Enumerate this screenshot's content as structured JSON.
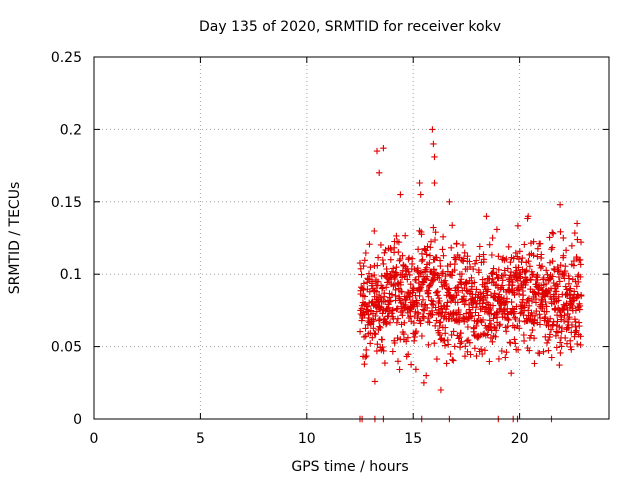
{
  "chart_data": {
    "type": "scatter",
    "title": "Day 135 of 2020, SRMTID for receiver kokv",
    "xlabel": "GPS time / hours",
    "ylabel": "SRMTID / TECUs",
    "xlim": [
      0,
      24.2
    ],
    "ylim": [
      0,
      0.25
    ],
    "x_ticks": [
      "0",
      "5",
      "10",
      "15",
      "20"
    ],
    "x_tick_values": [
      0,
      5,
      10,
      15,
      20
    ],
    "y_ticks": [
      "0",
      "0.05",
      "0.1",
      "0.15",
      "0.2",
      "0.25"
    ],
    "y_tick_values": [
      0,
      0.05,
      0.1,
      0.15,
      0.2,
      0.25
    ],
    "grid": true,
    "series": [
      {
        "name": "SRMTID",
        "marker": "+",
        "color": "#e00000",
        "x_start": 12.5,
        "x_end": 22.9,
        "count": 1250,
        "typical_range": [
          0.04,
          0.12
        ],
        "notable_points": [
          {
            "x": 13.2,
            "y": 0.026
          },
          {
            "x": 13.3,
            "y": 0.185
          },
          {
            "x": 13.4,
            "y": 0.17
          },
          {
            "x": 13.6,
            "y": 0.187
          },
          {
            "x": 14.4,
            "y": 0.155
          },
          {
            "x": 15.3,
            "y": 0.163
          },
          {
            "x": 15.35,
            "y": 0.155
          },
          {
            "x": 15.5,
            "y": 0.025
          },
          {
            "x": 15.9,
            "y": 0.2
          },
          {
            "x": 15.95,
            "y": 0.19
          },
          {
            "x": 16.0,
            "y": 0.181
          },
          {
            "x": 16.0,
            "y": 0.163
          },
          {
            "x": 16.3,
            "y": 0.02
          },
          {
            "x": 16.7,
            "y": 0.15
          },
          {
            "x": 21.9,
            "y": 0.148
          },
          {
            "x": 22.7,
            "y": 0.135
          },
          {
            "x": 12.5,
            "y": 0
          },
          {
            "x": 12.6,
            "y": 0
          },
          {
            "x": 13.2,
            "y": 0
          },
          {
            "x": 13.6,
            "y": 0
          },
          {
            "x": 15.4,
            "y": 0
          },
          {
            "x": 16.7,
            "y": 0
          },
          {
            "x": 19.0,
            "y": 0
          },
          {
            "x": 19.7,
            "y": 0
          },
          {
            "x": 19.9,
            "y": 0
          },
          {
            "x": 21.5,
            "y": 0
          }
        ]
      }
    ]
  }
}
